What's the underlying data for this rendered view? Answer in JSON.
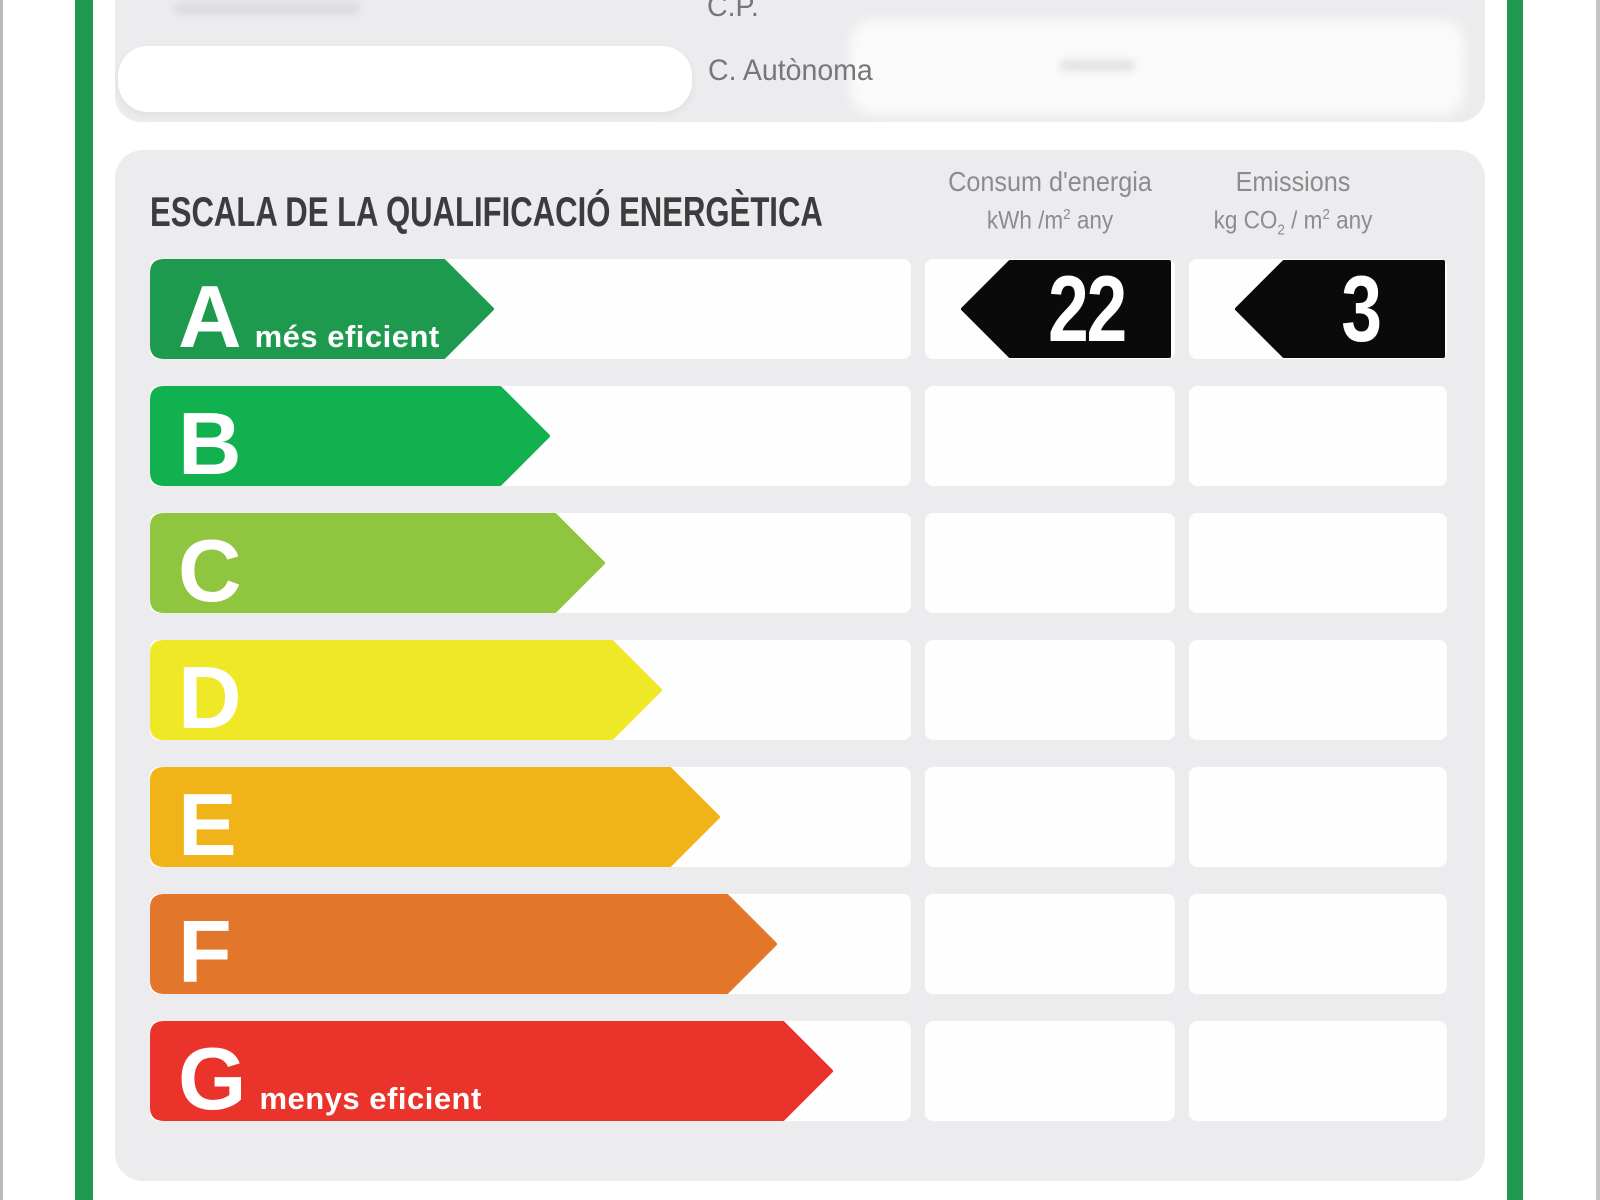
{
  "form": {
    "cp_label": "C.P.",
    "ca_label": "C. Autònoma",
    "address_value": ""
  },
  "scale": {
    "title": "ESCALA DE LA QUALIFICACIÓ ENERGÈTICA",
    "columns": [
      {
        "title": "Consum d'energia",
        "unit_pre": "kWh /m",
        "unit_sup": "2",
        "unit_post": " any"
      },
      {
        "title": "Emissions",
        "unit_pre": "kg CO",
        "unit_sub": "2",
        "unit_mid": " / m",
        "unit_sup": "2",
        "unit_post": " any"
      }
    ],
    "rows": [
      {
        "grade": "A",
        "note": "més eficient",
        "color": "#1d9a4d",
        "bar_length": 294
      },
      {
        "grade": "B",
        "note": "",
        "color": "#12b150",
        "bar_length": 350
      },
      {
        "grade": "C",
        "note": "",
        "color": "#8fc53f",
        "bar_length": 405
      },
      {
        "grade": "D",
        "note": "",
        "color": "#eee827",
        "bar_length": 462
      },
      {
        "grade": "E",
        "note": "",
        "color": "#f0b418",
        "bar_length": 520
      },
      {
        "grade": "F",
        "note": "",
        "color": "#e2762b",
        "bar_length": 577
      },
      {
        "grade": "G",
        "note": "menys eficient",
        "color": "#ea332b",
        "bar_length": 633
      }
    ],
    "ratings": {
      "grade": "A",
      "consum_value": "22",
      "emissions_value": "3"
    }
  },
  "colors": {
    "accent_green": "#1f9950",
    "panel_bg": "#ececee",
    "cell_bg": "#fefefe",
    "badge_bg": "#0a0a0a",
    "title_text": "#3c3c3e",
    "header_text": "#8b8c8e"
  }
}
